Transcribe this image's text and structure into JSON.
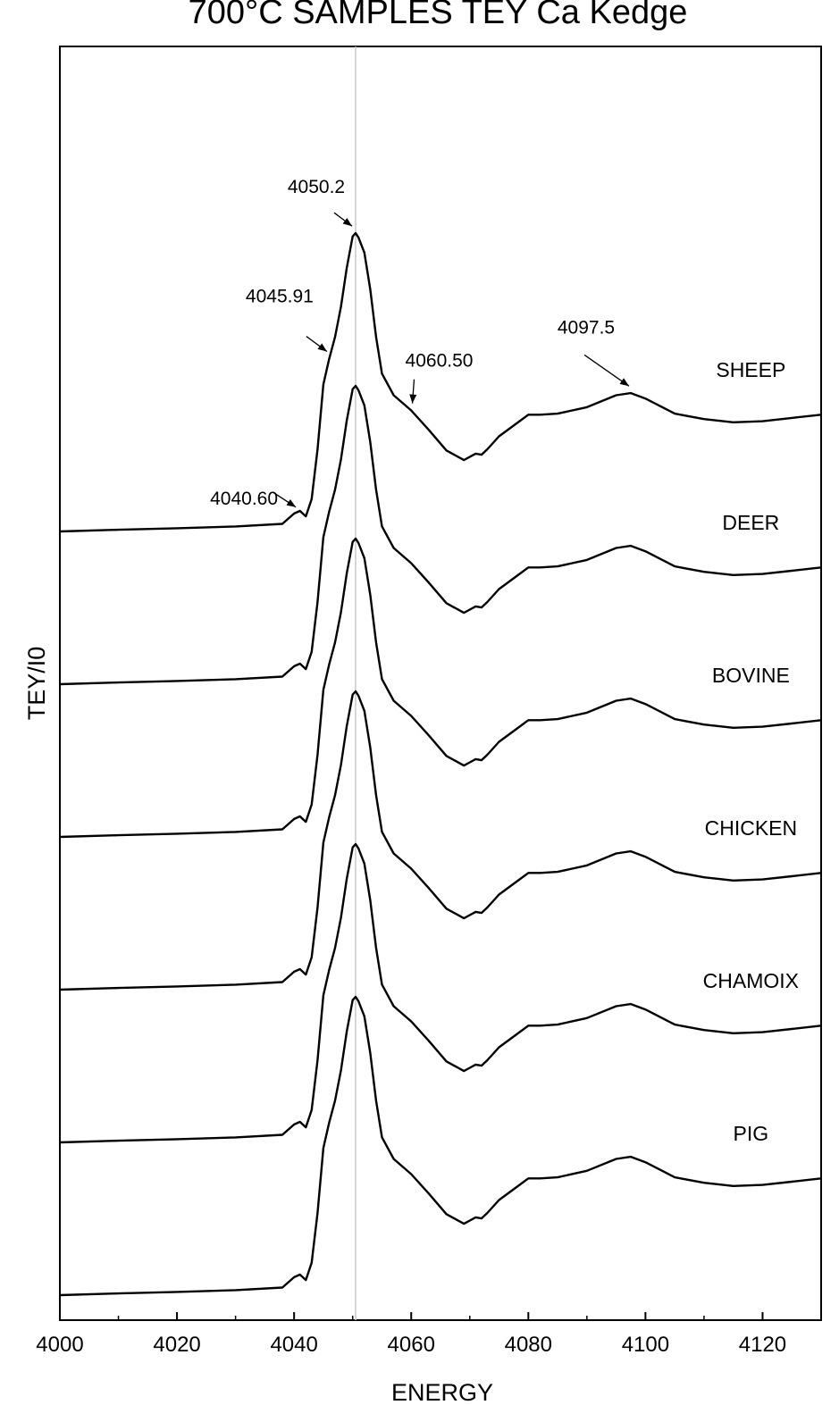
{
  "chart_data": {
    "type": "line",
    "title": "700°C SAMPLES TEY Ca Kedge",
    "xlabel": "ENERGY",
    "ylabel": "TEY/I0",
    "xlim": [
      4000,
      4130
    ],
    "xticks": [
      4000,
      4020,
      4040,
      4060,
      4080,
      4100,
      4120
    ],
    "yticks": [],
    "grid": false,
    "vline_x": 4050.5,
    "series": [
      {
        "name": "SHEEP",
        "offset": 5,
        "x": [
          4000,
          4010,
          4020,
          4030,
          4038,
          4040,
          4041,
          4042,
          4043,
          4044,
          4045,
          4046,
          4047,
          4048,
          4049,
          4050,
          4050.5,
          4051,
          4052,
          4053,
          4054,
          4055,
          4057,
          4060,
          4063,
          4066,
          4069,
          4070,
          4071,
          4072,
          4073,
          4075,
          4078,
          4080,
          4082,
          4085,
          4090,
          4095,
          4097.5,
          4100,
          4105,
          4110,
          4115,
          4120,
          4125,
          4130
        ],
        "y": [
          0.0,
          0.008,
          0.015,
          0.023,
          0.035,
          0.083,
          0.095,
          0.07,
          0.15,
          0.38,
          0.68,
          0.8,
          0.9,
          1.04,
          1.22,
          1.365,
          1.38,
          1.36,
          1.29,
          1.12,
          0.9,
          0.73,
          0.63,
          0.56,
          0.47,
          0.375,
          0.33,
          0.345,
          0.36,
          0.355,
          0.38,
          0.44,
          0.5,
          0.54,
          0.54,
          0.545,
          0.575,
          0.63,
          0.64,
          0.615,
          0.545,
          0.52,
          0.505,
          0.51,
          0.525,
          0.54
        ]
      },
      {
        "name": "DEER",
        "offset": 4,
        "x": [
          4000,
          4010,
          4020,
          4030,
          4038,
          4040,
          4041,
          4042,
          4043,
          4044,
          4045,
          4046,
          4047,
          4048,
          4049,
          4050,
          4050.5,
          4051,
          4052,
          4053,
          4054,
          4055,
          4057,
          4060,
          4063,
          4066,
          4069,
          4070,
          4071,
          4072,
          4073,
          4075,
          4078,
          4080,
          4082,
          4085,
          4090,
          4095,
          4097.5,
          4100,
          4105,
          4110,
          4115,
          4120,
          4125,
          4130
        ],
        "y": [
          0.0,
          0.008,
          0.015,
          0.023,
          0.035,
          0.083,
          0.095,
          0.07,
          0.15,
          0.38,
          0.68,
          0.8,
          0.9,
          1.04,
          1.22,
          1.365,
          1.38,
          1.36,
          1.29,
          1.12,
          0.9,
          0.73,
          0.63,
          0.56,
          0.47,
          0.375,
          0.33,
          0.345,
          0.36,
          0.355,
          0.38,
          0.44,
          0.5,
          0.54,
          0.54,
          0.545,
          0.575,
          0.63,
          0.64,
          0.615,
          0.545,
          0.52,
          0.505,
          0.51,
          0.525,
          0.54
        ]
      },
      {
        "name": "BOVINE",
        "offset": 3,
        "x": [
          4000,
          4010,
          4020,
          4030,
          4038,
          4040,
          4041,
          4042,
          4043,
          4044,
          4045,
          4046,
          4047,
          4048,
          4049,
          4050,
          4050.5,
          4051,
          4052,
          4053,
          4054,
          4055,
          4057,
          4060,
          4063,
          4066,
          4069,
          4070,
          4071,
          4072,
          4073,
          4075,
          4078,
          4080,
          4082,
          4085,
          4090,
          4095,
          4097.5,
          4100,
          4105,
          4110,
          4115,
          4120,
          4125,
          4130
        ],
        "y": [
          0.0,
          0.008,
          0.015,
          0.023,
          0.035,
          0.083,
          0.095,
          0.07,
          0.15,
          0.38,
          0.68,
          0.8,
          0.9,
          1.04,
          1.22,
          1.365,
          1.38,
          1.36,
          1.29,
          1.12,
          0.9,
          0.73,
          0.63,
          0.56,
          0.47,
          0.375,
          0.33,
          0.345,
          0.36,
          0.355,
          0.38,
          0.44,
          0.5,
          0.54,
          0.54,
          0.545,
          0.575,
          0.63,
          0.64,
          0.615,
          0.545,
          0.52,
          0.505,
          0.51,
          0.525,
          0.54
        ]
      },
      {
        "name": "CHICKEN",
        "offset": 2,
        "x": [
          4000,
          4010,
          4020,
          4030,
          4038,
          4040,
          4041,
          4042,
          4043,
          4044,
          4045,
          4046,
          4047,
          4048,
          4049,
          4050,
          4050.5,
          4051,
          4052,
          4053,
          4054,
          4055,
          4057,
          4060,
          4063,
          4066,
          4069,
          4070,
          4071,
          4072,
          4073,
          4075,
          4078,
          4080,
          4082,
          4085,
          4090,
          4095,
          4097.5,
          4100,
          4105,
          4110,
          4115,
          4120,
          4125,
          4130
        ],
        "y": [
          0.0,
          0.008,
          0.015,
          0.023,
          0.035,
          0.083,
          0.095,
          0.07,
          0.15,
          0.38,
          0.68,
          0.8,
          0.9,
          1.04,
          1.22,
          1.365,
          1.38,
          1.36,
          1.29,
          1.12,
          0.9,
          0.73,
          0.63,
          0.56,
          0.47,
          0.375,
          0.33,
          0.345,
          0.36,
          0.355,
          0.38,
          0.44,
          0.5,
          0.54,
          0.54,
          0.545,
          0.575,
          0.63,
          0.64,
          0.615,
          0.545,
          0.52,
          0.505,
          0.51,
          0.525,
          0.54
        ]
      },
      {
        "name": "CHAMOIX",
        "offset": 1,
        "x": [
          4000,
          4010,
          4020,
          4030,
          4038,
          4040,
          4041,
          4042,
          4043,
          4044,
          4045,
          4046,
          4047,
          4048,
          4049,
          4050,
          4050.5,
          4051,
          4052,
          4053,
          4054,
          4055,
          4057,
          4060,
          4063,
          4066,
          4069,
          4070,
          4071,
          4072,
          4073,
          4075,
          4078,
          4080,
          4082,
          4085,
          4090,
          4095,
          4097.5,
          4100,
          4105,
          4110,
          4115,
          4120,
          4125,
          4130
        ],
        "y": [
          0.0,
          0.008,
          0.015,
          0.023,
          0.035,
          0.083,
          0.095,
          0.07,
          0.15,
          0.38,
          0.68,
          0.8,
          0.9,
          1.04,
          1.22,
          1.365,
          1.38,
          1.36,
          1.29,
          1.12,
          0.9,
          0.73,
          0.63,
          0.56,
          0.47,
          0.375,
          0.33,
          0.345,
          0.36,
          0.355,
          0.38,
          0.44,
          0.5,
          0.54,
          0.54,
          0.545,
          0.575,
          0.63,
          0.64,
          0.615,
          0.545,
          0.52,
          0.505,
          0.51,
          0.525,
          0.54
        ]
      },
      {
        "name": "PIG",
        "offset": 0,
        "x": [
          4000,
          4010,
          4020,
          4030,
          4038,
          4040,
          4041,
          4042,
          4043,
          4044,
          4045,
          4046,
          4047,
          4048,
          4049,
          4050,
          4050.5,
          4051,
          4052,
          4053,
          4054,
          4055,
          4057,
          4060,
          4063,
          4066,
          4069,
          4070,
          4071,
          4072,
          4073,
          4075,
          4078,
          4080,
          4082,
          4085,
          4090,
          4095,
          4097.5,
          4100,
          4105,
          4110,
          4115,
          4120,
          4125,
          4130
        ],
        "y": [
          0.0,
          0.008,
          0.015,
          0.023,
          0.035,
          0.083,
          0.095,
          0.07,
          0.15,
          0.38,
          0.68,
          0.8,
          0.9,
          1.04,
          1.22,
          1.365,
          1.38,
          1.36,
          1.29,
          1.12,
          0.9,
          0.73,
          0.63,
          0.56,
          0.47,
          0.375,
          0.33,
          0.345,
          0.36,
          0.355,
          0.38,
          0.44,
          0.5,
          0.54,
          0.54,
          0.545,
          0.575,
          0.63,
          0.64,
          0.615,
          0.545,
          0.52,
          0.505,
          0.51,
          0.525,
          0.54
        ]
      }
    ],
    "annotations": [
      {
        "text": "4050.2",
        "x": 4050.2
      },
      {
        "text": "4045.91",
        "x": 4045.91
      },
      {
        "text": "4040.60",
        "x": 4040.6
      },
      {
        "text": "4060.50",
        "x": 4060.5
      },
      {
        "text": "4097.5",
        "x": 4097.5
      }
    ]
  }
}
